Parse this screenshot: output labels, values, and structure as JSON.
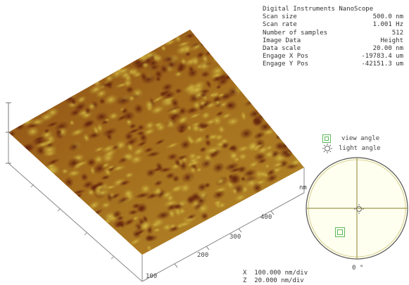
{
  "info": {
    "title": "Digital Instruments NanoScope",
    "rows": [
      {
        "label": "Scan size",
        "value": "500.0 nm"
      },
      {
        "label": "Scan rate",
        "value": "1.001 Hz"
      },
      {
        "label": "Number of samples",
        "value": "512"
      },
      {
        "label": "Image Data",
        "value": "Height"
      },
      {
        "label": "Data scale",
        "value": "20.00 nm"
      },
      {
        "label": "Engage X Pos",
        "value": "-19783.4 um"
      },
      {
        "label": "Engage Y Pos",
        "value": "-42151.3 um"
      }
    ]
  },
  "legend": {
    "view_label": "view angle",
    "light_label": "light angle"
  },
  "axis": {
    "unit": "nm",
    "ticks": [
      "100",
      "200",
      "300",
      "400"
    ]
  },
  "dial": {
    "zero_label": "0 °"
  },
  "scale": {
    "x_prefix": "X",
    "x_value": "100.000 nm/div",
    "z_prefix": "Z",
    "z_value": "20.000 nm/div"
  },
  "colors": {
    "surface_dark": "#6e2a10",
    "surface_mid": "#a06a18",
    "surface_light": "#c8a838",
    "dial_fill": "#fffff0",
    "dial_line": "#a09a50",
    "legend_green": "#5cb85c"
  }
}
